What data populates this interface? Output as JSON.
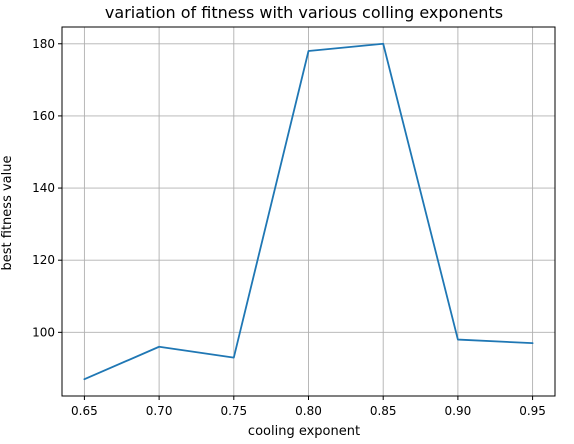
{
  "chart_data": {
    "type": "line",
    "title": "variation of fitness with various colling exponents",
    "xlabel": "cooling exponent",
    "ylabel": "best fitness value",
    "x": [
      0.65,
      0.7,
      0.75,
      0.8,
      0.85,
      0.9,
      0.95
    ],
    "series": [
      {
        "values": [
          87,
          96,
          93,
          178,
          180,
          98,
          97
        ],
        "color": "#1f77b4"
      }
    ],
    "xlim": [
      0.635,
      0.965
    ],
    "ylim": [
      82.35,
      184.65
    ],
    "xticks": [
      "0.65",
      "0.70",
      "0.75",
      "0.80",
      "0.85",
      "0.90",
      "0.95"
    ],
    "yticks": [
      "100",
      "120",
      "140",
      "160",
      "180"
    ],
    "grid": true,
    "legend": "none"
  }
}
